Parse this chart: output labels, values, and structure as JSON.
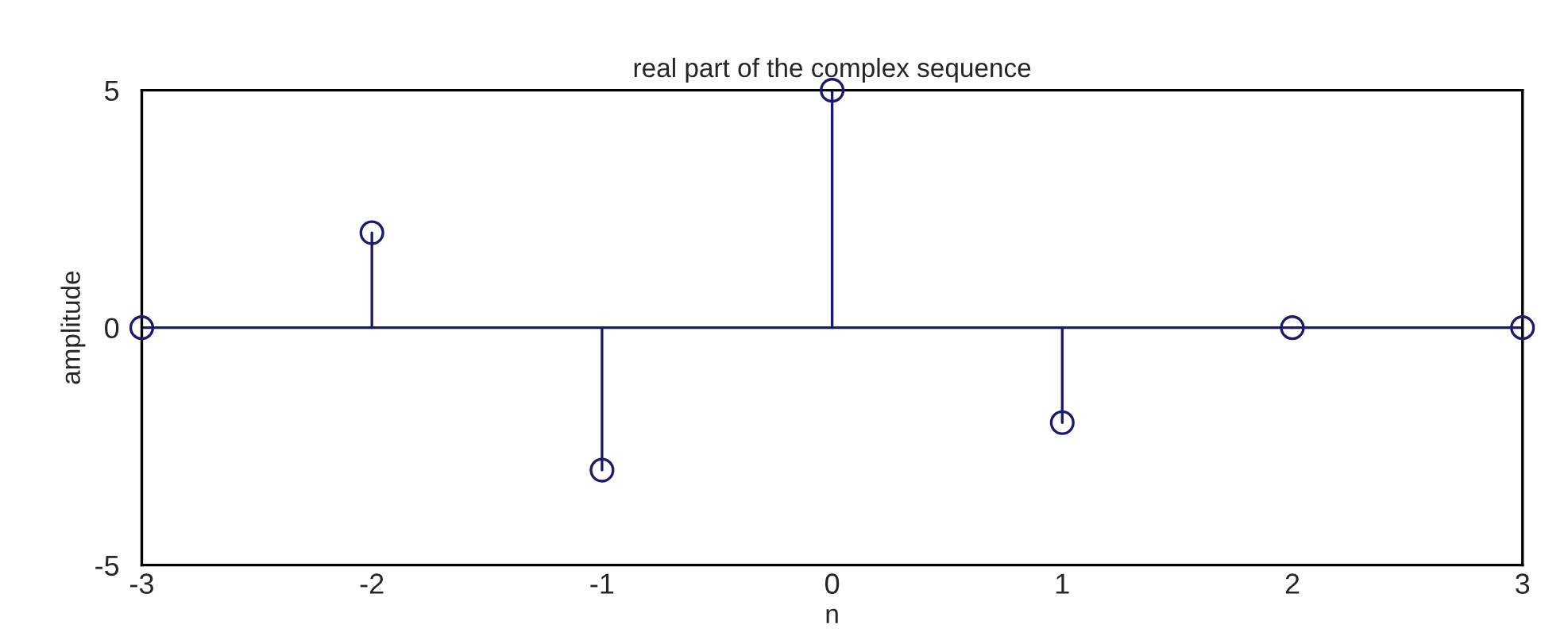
{
  "chart_data": {
    "type": "lollipop",
    "title": "real part of the complex sequence",
    "xlabel": "n",
    "ylabel": "amplitude",
    "x": [
      -3,
      -2,
      -1,
      0,
      1,
      2,
      3
    ],
    "values": [
      0,
      2,
      -3,
      5,
      -2,
      0,
      0
    ],
    "color": "#1a1a6e",
    "xlim": [
      -3,
      3
    ],
    "xticks": [
      -3,
      -2,
      -1,
      0,
      1,
      2,
      3
    ],
    "ylim": [
      -5,
      5
    ],
    "yticks": [
      -5,
      0,
      5
    ],
    "ref_lines": [
      {
        "axis": "y",
        "value": 0
      }
    ],
    "marker": "circle",
    "grid": false,
    "legend": false
  }
}
